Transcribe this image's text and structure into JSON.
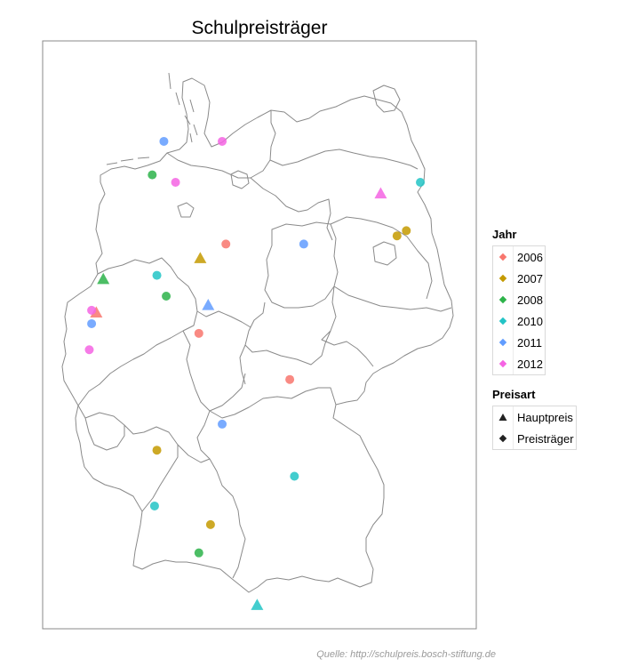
{
  "title": "Schulpreisträger",
  "source": "Quelle: http://schulpreis.bosch-stiftung.de",
  "colors": {
    "2006": "#f8766d",
    "2007": "#c49a00",
    "2008": "#2db34a",
    "2010": "#22c4c6",
    "2011": "#619cff",
    "2012": "#f564e3"
  },
  "legend_jahr": {
    "title": "Jahr",
    "items": [
      {
        "label": "2006",
        "color": "#f8766d"
      },
      {
        "label": "2007",
        "color": "#c49a00"
      },
      {
        "label": "2008",
        "color": "#2db34a"
      },
      {
        "label": "2010",
        "color": "#22c4c6"
      },
      {
        "label": "2011",
        "color": "#619cff"
      },
      {
        "label": "2012",
        "color": "#f564e3"
      }
    ]
  },
  "legend_preisart": {
    "title": "Preisart",
    "items": [
      {
        "label": "Hauptpreis",
        "shape": "triangle"
      },
      {
        "label": "Preisträger",
        "shape": "circle"
      }
    ]
  },
  "chart_data": {
    "type": "scatter",
    "title": "Schulpreisträger",
    "xlabel": "",
    "ylabel": "",
    "xlim": [
      5.8,
      15.1
    ],
    "ylim": [
      47.2,
      55.1
    ],
    "grid": false,
    "legend_position": "right",
    "series": [
      {
        "name": "2006",
        "points": [
          {
            "lon": 9.73,
            "lat": 52.37,
            "type": "Preisträger"
          },
          {
            "lon": 6.95,
            "lat": 51.45,
            "type": "Hauptpreis"
          },
          {
            "lon": 9.15,
            "lat": 51.17,
            "type": "Preisträger"
          },
          {
            "lon": 11.1,
            "lat": 50.55,
            "type": "Preisträger"
          }
        ]
      },
      {
        "name": "2007",
        "points": [
          {
            "lon": 9.18,
            "lat": 52.18,
            "type": "Hauptpreis"
          },
          {
            "lon": 13.6,
            "lat": 52.55,
            "type": "Preisträger"
          },
          {
            "lon": 13.4,
            "lat": 52.48,
            "type": "Preisträger"
          },
          {
            "lon": 8.25,
            "lat": 49.6,
            "type": "Preisträger"
          },
          {
            "lon": 9.4,
            "lat": 48.6,
            "type": "Preisträger"
          }
        ]
      },
      {
        "name": "2008",
        "points": [
          {
            "lon": 8.15,
            "lat": 53.3,
            "type": "Preisträger"
          },
          {
            "lon": 7.1,
            "lat": 51.9,
            "type": "Hauptpreis"
          },
          {
            "lon": 8.45,
            "lat": 51.67,
            "type": "Preisträger"
          },
          {
            "lon": 9.15,
            "lat": 48.22,
            "type": "Preisträger"
          }
        ]
      },
      {
        "name": "2010",
        "points": [
          {
            "lon": 13.9,
            "lat": 53.2,
            "type": "Preisträger"
          },
          {
            "lon": 8.25,
            "lat": 51.95,
            "type": "Preisträger"
          },
          {
            "lon": 11.2,
            "lat": 49.25,
            "type": "Preisträger"
          },
          {
            "lon": 8.2,
            "lat": 48.85,
            "type": "Preisträger"
          },
          {
            "lon": 10.4,
            "lat": 47.52,
            "type": "Hauptpreis"
          }
        ]
      },
      {
        "name": "2011",
        "points": [
          {
            "lon": 8.4,
            "lat": 53.75,
            "type": "Preisträger"
          },
          {
            "lon": 11.4,
            "lat": 52.37,
            "type": "Preisträger"
          },
          {
            "lon": 9.35,
            "lat": 51.55,
            "type": "Hauptpreis"
          },
          {
            "lon": 6.85,
            "lat": 51.3,
            "type": "Preisträger"
          },
          {
            "lon": 9.65,
            "lat": 49.95,
            "type": "Preisträger"
          }
        ]
      },
      {
        "name": "2012",
        "points": [
          {
            "lon": 9.65,
            "lat": 53.75,
            "type": "Preisträger"
          },
          {
            "lon": 8.65,
            "lat": 53.2,
            "type": "Preisträger"
          },
          {
            "lon": 13.05,
            "lat": 53.05,
            "type": "Hauptpreis"
          },
          {
            "lon": 6.85,
            "lat": 51.48,
            "type": "Preisträger"
          },
          {
            "lon": 6.8,
            "lat": 50.95,
            "type": "Preisträger"
          }
        ]
      }
    ]
  }
}
